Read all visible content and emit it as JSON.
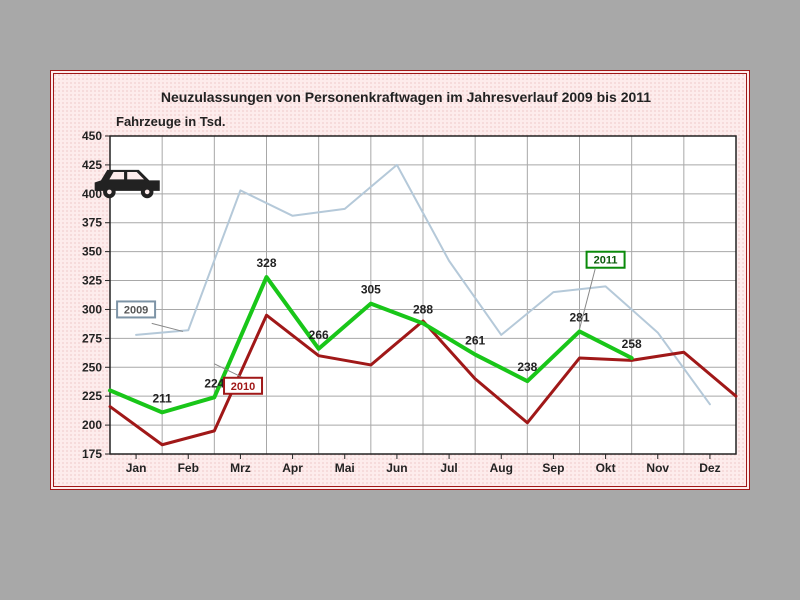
{
  "page_bg": "#a8a8a8",
  "frame_bg": "#fdecec",
  "frame_border": "#a01818",
  "title": "Neuzulassungen von Personenkraftwagen im Jahresverlauf 2009 bis 2011",
  "subtitle": "Fahrzeuge in Tsd.",
  "chart": {
    "type": "line",
    "background_color": "#ffffff",
    "grid_color": "#a8a8a8",
    "axis_color": "#222222",
    "xlabels": [
      "Jan",
      "Feb",
      "Mrz",
      "Apr",
      "Mai",
      "Jun",
      "Jul",
      "Aug",
      "Sep",
      "Okt",
      "Nov",
      "Dez"
    ],
    "ylim": [
      175,
      450
    ],
    "ytick_step": 25,
    "yticks": [
      175,
      200,
      225,
      250,
      275,
      300,
      325,
      350,
      375,
      400,
      425,
      450
    ],
    "series": [
      {
        "name": "2009",
        "label": "2009",
        "color": "#b5c9d9",
        "width": 2,
        "values": [
          278,
          282,
          403,
          381,
          387,
          425,
          342,
          278,
          315,
          320,
          280,
          218
        ],
        "label_box": {
          "x_cat": 0,
          "y_val": 300,
          "border": "#7d94a6",
          "text": "#555"
        },
        "leader": {
          "from_cat": 0.3,
          "from_val": 288,
          "to_cat": 0.9,
          "to_val": 281
        }
      },
      {
        "name": "2010",
        "label": "2010",
        "color": "#a01818",
        "width": 3,
        "values": [
          216,
          183,
          195,
          295,
          260,
          252,
          290,
          240,
          202,
          258,
          256,
          263,
          225
        ],
        "x_offset": -0.5,
        "label_box": {
          "x_cat": 2.05,
          "y_val": 234,
          "border": "#a01818",
          "text": "#a01818"
        },
        "leader": {
          "from_cat": 2.05,
          "from_val": 241,
          "to_cat": 1.5,
          "to_val": 253
        }
      },
      {
        "name": "2011",
        "label": "2011",
        "color": "#19c619",
        "width": 4,
        "values": [
          230,
          211,
          224,
          328,
          266,
          305,
          288,
          261,
          238,
          281,
          258
        ],
        "x_offset": -0.5,
        "data_labels": [
          211,
          224,
          328,
          266,
          305,
          288,
          261,
          238,
          281,
          258
        ],
        "data_label_index_start": 1,
        "label_box": {
          "x_cat": 9.0,
          "y_val": 343,
          "border": "#0a8a0a",
          "fill": "#19e619",
          "text": "#0a5a0a"
        },
        "leader": {
          "from_cat": 8.8,
          "from_val": 335,
          "to_cat": 8.5,
          "to_val": 283
        }
      }
    ],
    "car_icon": {
      "x_cat": -0.15,
      "y_val": 408,
      "fill": "#222222"
    }
  }
}
